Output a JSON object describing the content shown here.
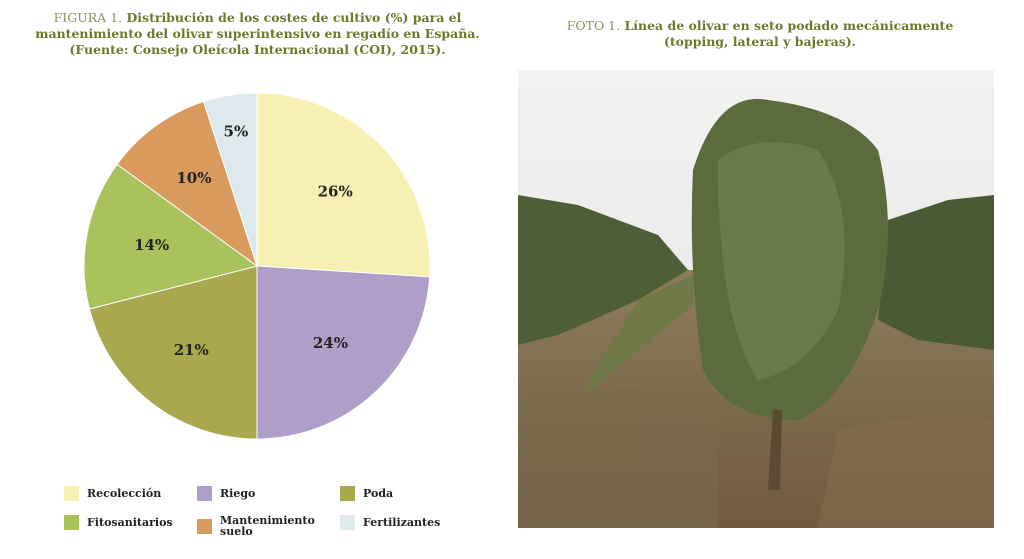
{
  "chart_data": {
    "type": "pie",
    "figure_label": "FIGURA 1.",
    "title": "Distribución de los costes de cultivo (%) para el mantenimiento del olivar superintensivo en regadío en España. (Fuente: Consejo Oleícola Internacional (COI), 2015).",
    "categories": [
      "Recolección",
      "Riego",
      "Poda",
      "Fitosanitarios",
      "Mantenimiento suelo",
      "Fertilizantes"
    ],
    "values": [
      26,
      24,
      21,
      14,
      10,
      5
    ],
    "value_labels": [
      "26%",
      "24%",
      "21%",
      "14%",
      "10%",
      "5%"
    ],
    "colors": [
      "#f8f0b2",
      "#ae9ec8",
      "#aaa84e",
      "#aac25b",
      "#d99a5e",
      "#dde9ec"
    ]
  },
  "photo": {
    "label": "FOTO 1.",
    "caption": "Línea de olivar en seto podado mecánicamente (topping, lateral y bajeras)."
  }
}
